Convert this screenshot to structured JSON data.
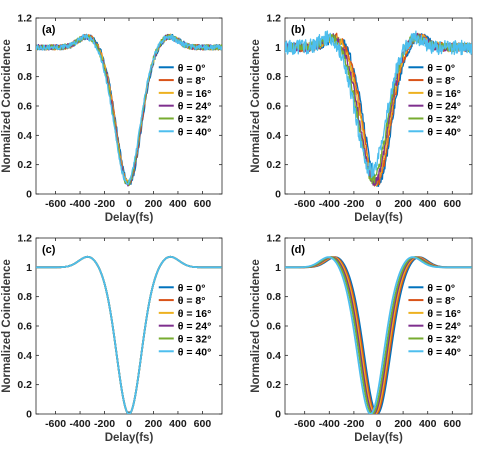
{
  "figure": {
    "panel_labels": [
      "(a)",
      "(b)",
      "(c)",
      "(d)"
    ],
    "xlabel": "Delay(fs)",
    "ylabel": "Normalized Coincidence",
    "x_tick_labels": [
      "-600",
      "-400",
      "-200",
      "0",
      "200",
      "400",
      "600"
    ],
    "y_tick_labels": [
      "0",
      "0.2",
      "0.4",
      "0.6",
      "0.8",
      "1",
      "1.2"
    ],
    "legend_entries": [
      "θ = 0°",
      "θ = 8°",
      "θ = 16°",
      "θ = 24°",
      "θ = 32°",
      "θ = 40°"
    ]
  },
  "colors": {
    "series": [
      "#0072BD",
      "#D95319",
      "#EDB120",
      "#7E2F8E",
      "#77AC30",
      "#4DBEEE"
    ],
    "axis": "#262626"
  },
  "chart_data": [
    {
      "type": "line",
      "panel": "(a)",
      "xlabel": "Delay(fs)",
      "ylabel": "Normalized Coincidence",
      "xlim": [
        -760,
        760
      ],
      "ylim": [
        0,
        1.2
      ],
      "legend": "right",
      "noisy": true,
      "series": [
        {
          "name": "θ = 0°",
          "dip_center": 0,
          "dip_min": 0.07,
          "dip_width": 140
        },
        {
          "name": "θ = 8°",
          "dip_center": -4,
          "dip_min": 0.07,
          "dip_width": 140
        },
        {
          "name": "θ = 16°",
          "dip_center": -7,
          "dip_min": 0.075,
          "dip_width": 141
        },
        {
          "name": "θ = 24°",
          "dip_center": -10,
          "dip_min": 0.07,
          "dip_width": 142
        },
        {
          "name": "θ = 32°",
          "dip_center": -12,
          "dip_min": 0.07,
          "dip_width": 143
        },
        {
          "name": "θ = 40°",
          "dip_center": -15,
          "dip_min": 0.08,
          "dip_width": 145
        }
      ]
    },
    {
      "type": "line",
      "panel": "(b)",
      "xlabel": "Delay(fs)",
      "ylabel": "Normalized Coincidence",
      "xlim": [
        -760,
        760
      ],
      "ylim": [
        0,
        1.2
      ],
      "legend": "right",
      "noisy": true,
      "series": [
        {
          "name": "θ = 0°",
          "dip_center": -5,
          "dip_min": 0.07,
          "dip_width": 150
        },
        {
          "name": "θ = 8°",
          "dip_center": -15,
          "dip_min": 0.07,
          "dip_width": 150
        },
        {
          "name": "θ = 16°",
          "dip_center": -25,
          "dip_min": 0.08,
          "dip_width": 152
        },
        {
          "name": "θ = 24°",
          "dip_center": -35,
          "dip_min": 0.08,
          "dip_width": 155
        },
        {
          "name": "θ = 32°",
          "dip_center": -45,
          "dip_min": 0.1,
          "dip_width": 158
        },
        {
          "name": "θ = 40°",
          "dip_center": -60,
          "dip_min": 0.16,
          "dip_width": 165
        }
      ]
    },
    {
      "type": "line",
      "panel": "(c)",
      "xlabel": "Delay(fs)",
      "ylabel": "Normalized Coincidence",
      "xlim": [
        -760,
        760
      ],
      "ylim": [
        0,
        1.2
      ],
      "legend": "right",
      "noisy": false,
      "series": [
        {
          "name": "θ = 0°",
          "dip_center": 0,
          "dip_min": 0.0,
          "dip_width": 140
        },
        {
          "name": "θ = 8°",
          "dip_center": 0,
          "dip_min": 0.0,
          "dip_width": 140
        },
        {
          "name": "θ = 16°",
          "dip_center": 0,
          "dip_min": 0.0,
          "dip_width": 140
        },
        {
          "name": "θ = 24°",
          "dip_center": 0,
          "dip_min": 0.0,
          "dip_width": 140
        },
        {
          "name": "θ = 32°",
          "dip_center": 0,
          "dip_min": 0.0,
          "dip_width": 140
        },
        {
          "name": "θ = 40°",
          "dip_center": 0,
          "dip_min": 0.0,
          "dip_width": 140
        }
      ]
    },
    {
      "type": "line",
      "panel": "(d)",
      "xlabel": "Delay(fs)",
      "ylabel": "Normalized Coincidence",
      "xlim": [
        -760,
        760
      ],
      "ylim": [
        0,
        1.2
      ],
      "legend": "right",
      "noisy": false,
      "series": [
        {
          "name": "θ = 0°",
          "dip_center": -10,
          "dip_min": 0.0,
          "dip_width": 148
        },
        {
          "name": "θ = 8°",
          "dip_center": -20,
          "dip_min": 0.0,
          "dip_width": 148
        },
        {
          "name": "θ = 16°",
          "dip_center": -30,
          "dip_min": 0.0,
          "dip_width": 148
        },
        {
          "name": "θ = 24°",
          "dip_center": -40,
          "dip_min": 0.0,
          "dip_width": 148
        },
        {
          "name": "θ = 32°",
          "dip_center": -50,
          "dip_min": 0.0,
          "dip_width": 148
        },
        {
          "name": "θ = 40°",
          "dip_center": -65,
          "dip_min": 0.0,
          "dip_width": 148
        }
      ]
    }
  ]
}
